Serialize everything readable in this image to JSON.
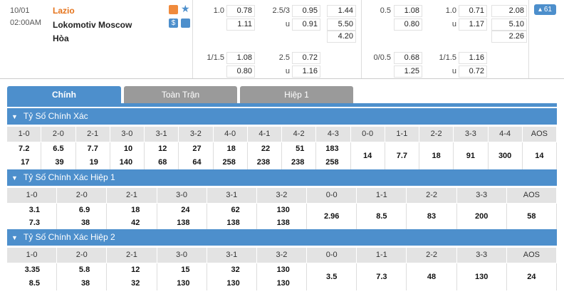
{
  "match": {
    "date": "10/01",
    "time": "02:00AM",
    "home": "Lazio",
    "away": "Lokomotiv Moscow",
    "draw": "Hòa",
    "more": "61"
  },
  "odds_rows": [
    [
      "1.0",
      "0.78",
      "2.5/3",
      "0.95",
      "1.44",
      "0.5",
      "1.08",
      "1.0",
      "0.71",
      "2.08"
    ],
    [
      null,
      "1.11",
      "u",
      "0.91",
      "5.50",
      null,
      "0.80",
      "u",
      "1.17",
      "5.10"
    ],
    [
      null,
      null,
      null,
      null,
      "4.20",
      null,
      null,
      null,
      null,
      "2.26"
    ],
    [
      "1/1.5",
      "1.08",
      "2.5",
      "0.72",
      null,
      "0/0.5",
      "0.68",
      "1/1.5",
      "1.16",
      null
    ],
    [
      null,
      "0.80",
      "u",
      "1.16",
      null,
      null,
      "1.25",
      "u",
      "0.72",
      null
    ]
  ],
  "tabs": [
    "Chính",
    "Toàn Trận",
    "Hiệp 1"
  ],
  "sections": [
    {
      "title": "Tỷ Số Chính Xác",
      "headers": [
        "1-0",
        "2-0",
        "2-1",
        "3-0",
        "3-1",
        "3-2",
        "4-0",
        "4-1",
        "4-2",
        "4-3",
        "0-0",
        "1-1",
        "2-2",
        "3-3",
        "4-4",
        "AOS"
      ],
      "cells": [
        [
          "7.2",
          "17"
        ],
        [
          "6.5",
          "39"
        ],
        [
          "7.7",
          "19"
        ],
        [
          "10",
          "140"
        ],
        [
          "12",
          "68"
        ],
        [
          "27",
          "64"
        ],
        [
          "18",
          "258"
        ],
        [
          "22",
          "238"
        ],
        [
          "51",
          "238"
        ],
        [
          "183",
          "258"
        ],
        [
          "14"
        ],
        [
          "7.7"
        ],
        [
          "18"
        ],
        [
          "91"
        ],
        [
          "300"
        ],
        [
          "14"
        ]
      ]
    },
    {
      "title": "Tỷ Số Chính Xác Hiệp 1",
      "headers": [
        "1-0",
        "2-0",
        "2-1",
        "3-0",
        "3-1",
        "3-2",
        "0-0",
        "1-1",
        "2-2",
        "3-3",
        "AOS"
      ],
      "cells": [
        [
          "3.1",
          "7.3"
        ],
        [
          "6.9",
          "38"
        ],
        [
          "18",
          "42"
        ],
        [
          "24",
          "138"
        ],
        [
          "62",
          "138"
        ],
        [
          "130",
          "138"
        ],
        [
          "2.96"
        ],
        [
          "8.5"
        ],
        [
          "83"
        ],
        [
          "200"
        ],
        [
          "58"
        ]
      ]
    },
    {
      "title": "Tỷ Số Chính Xác Hiệp 2",
      "headers": [
        "1-0",
        "2-0",
        "2-1",
        "3-0",
        "3-1",
        "3-2",
        "0-0",
        "1-1",
        "2-2",
        "3-3",
        "AOS"
      ],
      "cells": [
        [
          "3.35",
          "8.5"
        ],
        [
          "5.8",
          "38"
        ],
        [
          "12",
          "32"
        ],
        [
          "15",
          "130"
        ],
        [
          "32",
          "130"
        ],
        [
          "130",
          "130"
        ],
        [
          "3.5"
        ],
        [
          "7.3"
        ],
        [
          "48"
        ],
        [
          "130"
        ],
        [
          "24"
        ]
      ]
    }
  ]
}
